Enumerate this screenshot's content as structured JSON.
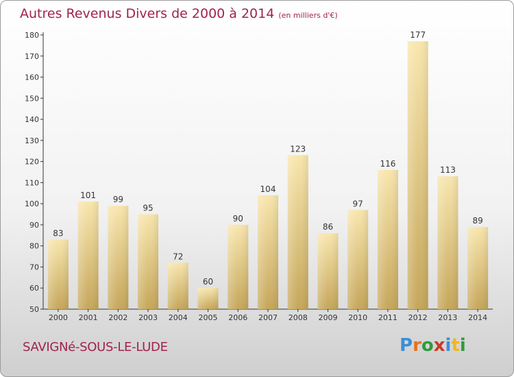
{
  "header": {
    "title": "Autres Revenus Divers de 2000 à 2014",
    "unit": "(en milliers d'€)"
  },
  "footer": {
    "commune": "SAVIGNé-SOUS-LE-LUDE",
    "brand": "Proxiti",
    "brand_colors": [
      "#3a8fd6",
      "#e8701a",
      "#2e9c3a",
      "#c43b2a",
      "#3a8fd6",
      "#f0b81a",
      "#2e9c3a"
    ]
  },
  "colors": {
    "title": "#a0234e",
    "bar_light": "#f7e2a3",
    "bar_dark": "#c8a95c"
  },
  "chart_data": {
    "type": "bar",
    "title": "Autres Revenus Divers de 2000 à 2014",
    "categories": [
      "2000",
      "2001",
      "2002",
      "2003",
      "2004",
      "2005",
      "2006",
      "2007",
      "2008",
      "2009",
      "2010",
      "2011",
      "2012",
      "2013",
      "2014"
    ],
    "values": [
      83,
      101,
      99,
      95,
      72,
      60,
      90,
      104,
      123,
      86,
      97,
      116,
      177,
      113,
      89
    ],
    "ylim": [
      50,
      180
    ],
    "yticks": [
      50,
      60,
      70,
      80,
      90,
      100,
      110,
      120,
      130,
      140,
      150,
      160,
      170,
      180
    ],
    "grid": false
  }
}
